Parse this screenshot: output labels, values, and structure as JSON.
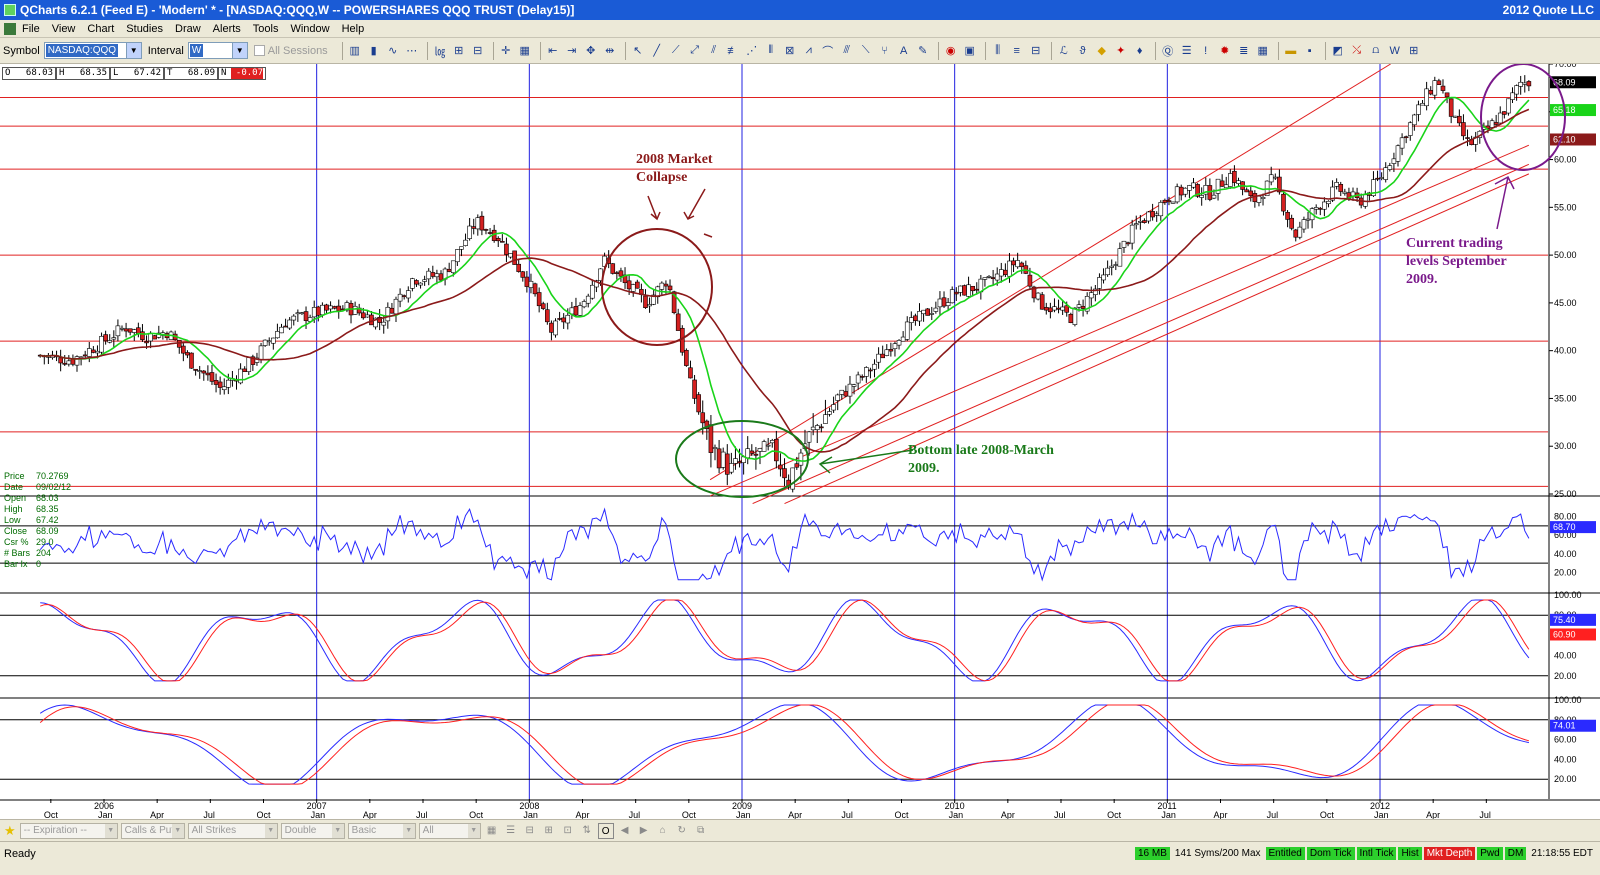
{
  "window": {
    "title": "QCharts 6.2.1 (Feed E) - 'Modern' * - [NASDAQ:QQQ,W -- POWERSHARES QQQ TRUST (Delay15)]",
    "company": "2012 Quote LLC"
  },
  "menu": [
    "File",
    "View",
    "Chart",
    "Studies",
    "Draw",
    "Alerts",
    "Tools",
    "Window",
    "Help"
  ],
  "toolbar": {
    "symbol_label": "Symbol",
    "symbol_value": "NASDAQ:QQQ",
    "interval_label": "Interval",
    "interval_value": "W",
    "all_sessions_label": "All Sessions",
    "tool_icons": [
      "bar-chart-icon",
      "candlestick-icon",
      "line-chart-icon",
      "zoom-icon",
      "log-scale-icon",
      "compress-icon",
      "expand-icon",
      "pointer-icon",
      "trendline-icon",
      "fibonacci-icon",
      "gann-icon",
      "cycle-icon",
      "text-icon",
      "alert-icon",
      "print-icon",
      "save-icon"
    ]
  },
  "quote_strip": {
    "open_label": "O",
    "open": "68.03",
    "high_label": "H",
    "high": "68.35",
    "low_label": "L",
    "low": "67.42",
    "last_label": "T",
    "last": "68.09",
    "net_label": "N",
    "net": "-0.07"
  },
  "data_window": [
    {
      "k": "Price",
      "v": "70.2769"
    },
    {
      "k": "Date",
      "v": "09/02/12"
    },
    {
      "k": "Open",
      "v": "68.03"
    },
    {
      "k": "High",
      "v": "68.35"
    },
    {
      "k": "Low",
      "v": "67.42"
    },
    {
      "k": "Close",
      "v": "68.09"
    },
    {
      "k": "Csr %",
      "v": "29.0"
    },
    {
      "k": "# Bars",
      "v": "204"
    },
    {
      "k": "Bar Ix",
      "v": "0"
    }
  ],
  "annotations": {
    "collapse_line1": "2008 Market",
    "collapse_line2": "Collapse",
    "bottom_line1": "Bottom late 2008-March",
    "bottom_line2": "2009.",
    "current_line1": "Current trading",
    "current_line2": "levels September",
    "current_line3": "2009."
  },
  "colors": {
    "candle_up": "#ffffff",
    "candle_down": "#d42020",
    "ma_fast": "#19d419",
    "ma_slow": "#8b1a1a",
    "vertical_lines": "#2020e0",
    "support_lines": "#e02020",
    "indicator_blue": "#2a2aff",
    "indicator_red": "#ff2020",
    "anno_red": "#8b1a1a",
    "anno_green": "#1a7a1a",
    "anno_purple": "#7a1a8b"
  },
  "chart_data": {
    "type": "candlestick",
    "symbol": "NASDAQ:QQQ",
    "interval": "W",
    "y_range": [
      25,
      70
    ],
    "y_ticks": [
      "70.00",
      "65.00",
      "60.00",
      "55.00",
      "50.00",
      "45.00",
      "40.00",
      "35.00",
      "30.00",
      "25.00"
    ],
    "x_months": [
      "Oct",
      "2006|Jan",
      "Apr",
      "Jul",
      "Oct",
      "2007|Jan",
      "Apr",
      "Jul",
      "Oct",
      "2008|Jan",
      "Apr",
      "Jul",
      "Oct",
      "2009|Jan",
      "Apr",
      "Jul",
      "Oct",
      "2010|Jan",
      "Apr",
      "Jul",
      "Oct",
      "2011|Jan",
      "Apr",
      "Jul",
      "Oct",
      "2012|Jan",
      "Apr",
      "Jul"
    ],
    "price_series": [
      [
        2005.7,
        39.5
      ],
      [
        2005.85,
        39.0
      ],
      [
        2006.0,
        41.0
      ],
      [
        2006.1,
        42.5
      ],
      [
        2006.2,
        41.5
      ],
      [
        2006.3,
        42.0
      ],
      [
        2006.4,
        39.0
      ],
      [
        2006.55,
        36.0
      ],
      [
        2006.7,
        39.0
      ],
      [
        2006.85,
        43.0
      ],
      [
        2007.0,
        44.0
      ],
      [
        2007.15,
        44.5
      ],
      [
        2007.3,
        43.0
      ],
      [
        2007.45,
        47.5
      ],
      [
        2007.6,
        48.0
      ],
      [
        2007.75,
        53.5
      ],
      [
        2007.85,
        52.0
      ],
      [
        2008.0,
        47.0
      ],
      [
        2008.1,
        42.0
      ],
      [
        2008.25,
        45.0
      ],
      [
        2008.35,
        49.5
      ],
      [
        2008.45,
        47.0
      ],
      [
        2008.55,
        45.0
      ],
      [
        2008.65,
        47.5
      ],
      [
        2008.75,
        37.0
      ],
      [
        2008.85,
        30.0
      ],
      [
        2008.95,
        27.5
      ],
      [
        2009.05,
        29.0
      ],
      [
        2009.15,
        29.5
      ],
      [
        2009.22,
        26.5
      ],
      [
        2009.3,
        30.5
      ],
      [
        2009.45,
        35.0
      ],
      [
        2009.6,
        38.0
      ],
      [
        2009.75,
        42.0
      ],
      [
        2009.9,
        44.5
      ],
      [
        2010.0,
        46.0
      ],
      [
        2010.15,
        47.0
      ],
      [
        2010.3,
        49.5
      ],
      [
        2010.4,
        45.0
      ],
      [
        2010.55,
        43.5
      ],
      [
        2010.7,
        47.5
      ],
      [
        2010.85,
        53.0
      ],
      [
        2011.0,
        56.0
      ],
      [
        2011.1,
        57.0
      ],
      [
        2011.2,
        56.5
      ],
      [
        2011.3,
        58.5
      ],
      [
        2011.4,
        55.5
      ],
      [
        2011.5,
        58.0
      ],
      [
        2011.6,
        52.0
      ],
      [
        2011.7,
        55.0
      ],
      [
        2011.8,
        57.0
      ],
      [
        2011.9,
        55.5
      ],
      [
        2012.0,
        58.0
      ],
      [
        2012.1,
        62.0
      ],
      [
        2012.2,
        66.0
      ],
      [
        2012.27,
        68.5
      ],
      [
        2012.35,
        64.0
      ],
      [
        2012.42,
        61.5
      ],
      [
        2012.5,
        63.0
      ],
      [
        2012.58,
        65.0
      ],
      [
        2012.66,
        68.0
      ],
      [
        2012.7,
        68.09
      ]
    ],
    "right_labels": [
      {
        "value": "68.09",
        "color": "#000000"
      },
      {
        "value": "65.18",
        "color": "#19d419"
      },
      {
        "value": "62.10",
        "color": "#8b1a1a"
      }
    ],
    "rsi": {
      "ticks": [
        "80.00",
        "60.00",
        "40.00",
        "20.00"
      ],
      "current": "68.70"
    },
    "stoch1": {
      "ticks": [
        "100.00",
        "80.00",
        "60.00",
        "40.00",
        "20.00"
      ],
      "k": "75.40",
      "d": "60.90"
    },
    "stoch2": {
      "ticks": [
        "100.00",
        "80.00",
        "60.00",
        "40.00",
        "20.00"
      ],
      "k": "74.01"
    }
  },
  "options_bar": {
    "expiration": "-- Expiration --",
    "calls_puts": "Calls & Puts",
    "strikes": "All Strikes",
    "double": "Double",
    "basic": "Basic",
    "all": "All"
  },
  "status": {
    "ready": "Ready",
    "mem": "16 MB",
    "syms": "141 Syms/200 Max",
    "entitled": "Entitled",
    "dom_tick": "Dom Tick",
    "intl_tick": "Intl Tick",
    "hist": "Hist",
    "mkt_depth": "Mkt Depth",
    "pwd": "Pwd",
    "dm": "DM",
    "clock": "21:18:55 EDT"
  }
}
